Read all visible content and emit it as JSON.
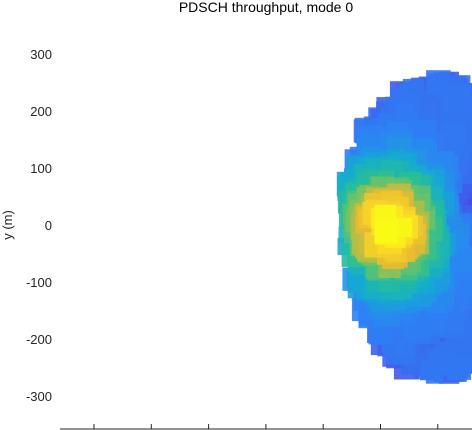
{
  "chart_data": {
    "type": "heatmap",
    "title": "PDSCH throughput, mode 0",
    "xlabel": "",
    "ylabel": "y (m)",
    "xlim": [
      -400,
      400
    ],
    "ylim": [
      -360,
      360
    ],
    "x_tick_count": 8,
    "y_ticks": [
      300,
      200,
      100,
      0,
      -100,
      -200,
      -300
    ],
    "y_tick_labels": [
      "300",
      "200",
      "100",
      "0",
      "-100",
      "-200",
      "-300"
    ],
    "grid": false,
    "colormap": "parula",
    "color_low": "#3e26a8",
    "color_high": "#f9fb15",
    "region": {
      "center_x": 245,
      "top_y": 255,
      "bottom_y": -265,
      "half_width": 160,
      "peak_x": 165,
      "peak_y": -5,
      "low_x": 360,
      "low_y": 35
    }
  }
}
